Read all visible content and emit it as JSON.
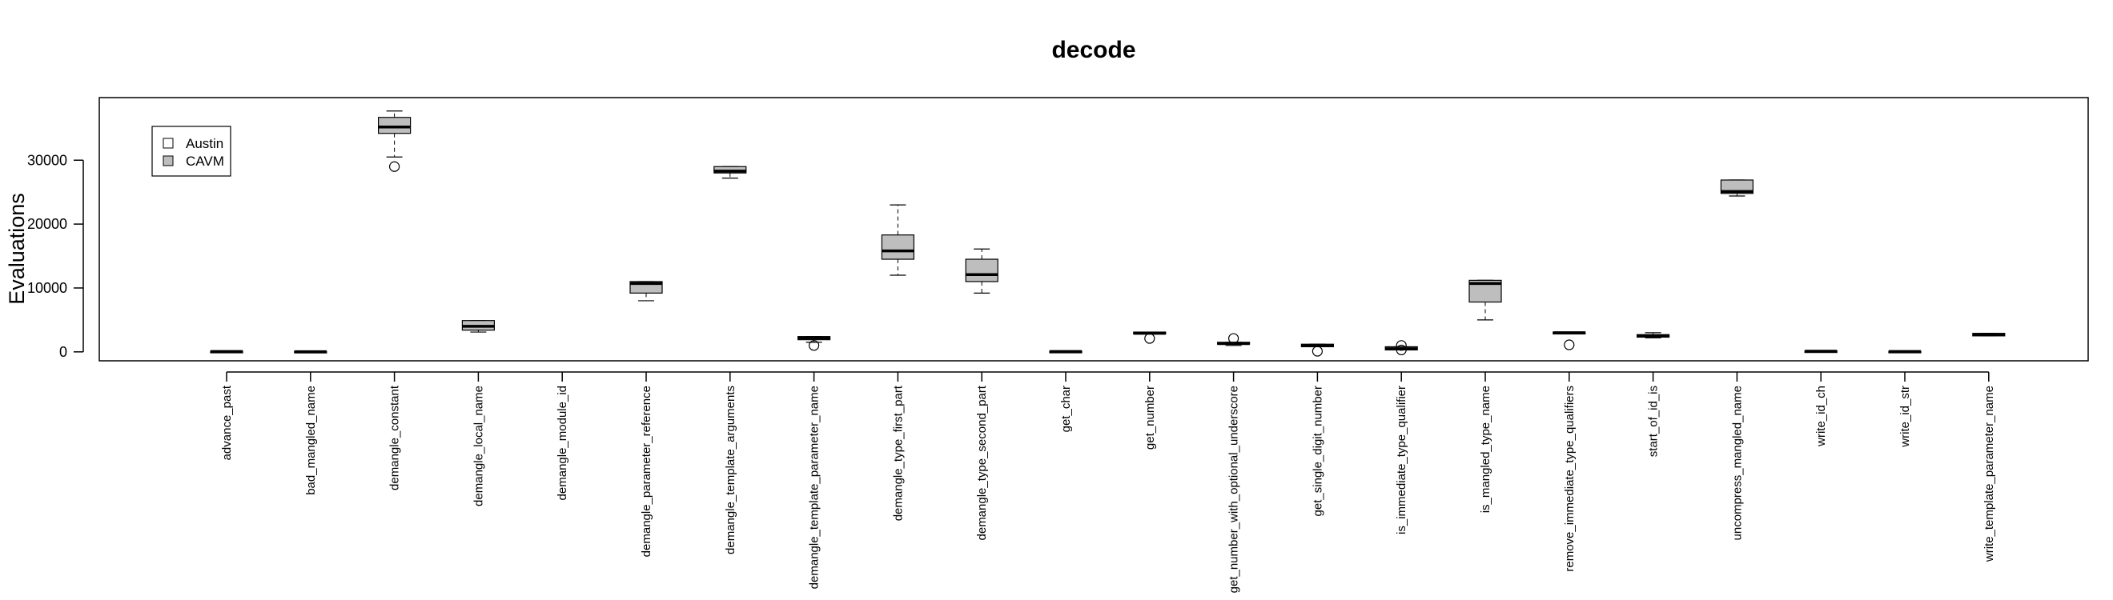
{
  "chart_data": {
    "type": "boxplot",
    "title": "decode",
    "xlabel": "",
    "ylabel": "Evaluations",
    "ylim": [
      -1400,
      39800
    ],
    "yticks": [
      0,
      10000,
      20000,
      30000
    ],
    "legend": {
      "position": "top-left",
      "entries": [
        {
          "name": "Austin",
          "color": "#ffffff"
        },
        {
          "name": "CAVM",
          "color": "#bebebe"
        }
      ]
    },
    "categories": [
      "advance_past",
      "bad_mangled_name",
      "demangle_constant",
      "demangle_local_name",
      "demangle_module_id",
      "demangle_parameter_reference",
      "demangle_template_arguments",
      "demangle_template_parameter_name",
      "demangle_type_first_part",
      "demangle_type_second_part",
      "get_char",
      "get_number",
      "get_number_with_optional_underscore",
      "get_single_digit_number",
      "is_immediate_type_qualifier",
      "is_mangled_type_name",
      "remove_immediate_type_qualifiers",
      "start_of_id_is",
      "uncompress_mangled_name",
      "write_id_ch",
      "write_id_str",
      "write_template_parameter_name"
    ],
    "series": [
      {
        "name": "CAVM",
        "boxes": [
          {
            "min": 0,
            "q1": 0,
            "median": 50,
            "q3": 100,
            "max": 100,
            "outliers": []
          },
          {
            "min": 0,
            "q1": 0,
            "median": 30,
            "q3": 80,
            "max": 80,
            "outliers": []
          },
          {
            "min": 30500,
            "q1": 34200,
            "median": 35200,
            "q3": 36700,
            "max": 37700,
            "outliers": [
              29000
            ]
          },
          {
            "min": 3100,
            "q1": 3400,
            "median": 4000,
            "q3": 4900,
            "max": 4900,
            "outliers": []
          },
          null,
          {
            "min": 8000,
            "q1": 9200,
            "median": 10700,
            "q3": 11000,
            "max": 11000,
            "outliers": []
          },
          {
            "min": 27200,
            "q1": 28000,
            "median": 28300,
            "q3": 29000,
            "max": 29000,
            "outliers": []
          },
          {
            "min": 1500,
            "q1": 1900,
            "median": 2200,
            "q3": 2400,
            "max": 2400,
            "outliers": [
              1000
            ]
          },
          {
            "min": 12000,
            "q1": 14500,
            "median": 15800,
            "q3": 18300,
            "max": 23000,
            "outliers": []
          },
          {
            "min": 9200,
            "q1": 11000,
            "median": 12100,
            "q3": 14500,
            "max": 16100,
            "outliers": []
          },
          {
            "min": 0,
            "q1": 0,
            "median": 50,
            "q3": 100,
            "max": 100,
            "outliers": []
          },
          {
            "min": 2800,
            "q1": 2800,
            "median": 2900,
            "q3": 3100,
            "max": 3100,
            "outliers": [
              2100
            ]
          },
          {
            "min": 1000,
            "q1": 1200,
            "median": 1300,
            "q3": 1500,
            "max": 1500,
            "outliers": [
              2100
            ]
          },
          {
            "min": 800,
            "q1": 800,
            "median": 1000,
            "q3": 1200,
            "max": 1200,
            "outliers": [
              100
            ]
          },
          {
            "min": 300,
            "q1": 300,
            "median": 500,
            "q3": 800,
            "max": 800,
            "outliers": [
              1000,
              300
            ]
          },
          {
            "min": 5000,
            "q1": 7800,
            "median": 10700,
            "q3": 11200,
            "max": 11200,
            "outliers": []
          },
          {
            "min": 2800,
            "q1": 2800,
            "median": 3000,
            "q3": 3100,
            "max": 3100,
            "outliers": [
              1100
            ]
          },
          {
            "min": 2200,
            "q1": 2300,
            "median": 2500,
            "q3": 2700,
            "max": 3000,
            "outliers": []
          },
          {
            "min": 24400,
            "q1": 24800,
            "median": 25100,
            "q3": 26900,
            "max": 26900,
            "outliers": []
          },
          {
            "min": 50,
            "q1": 50,
            "median": 100,
            "q3": 150,
            "max": 150,
            "outliers": []
          },
          {
            "min": 0,
            "q1": 0,
            "median": 50,
            "q3": 100,
            "max": 100,
            "outliers": []
          },
          {
            "min": 2500,
            "q1": 2500,
            "median": 2700,
            "q3": 2900,
            "max": 2900,
            "outliers": []
          }
        ]
      }
    ],
    "grid": false
  }
}
